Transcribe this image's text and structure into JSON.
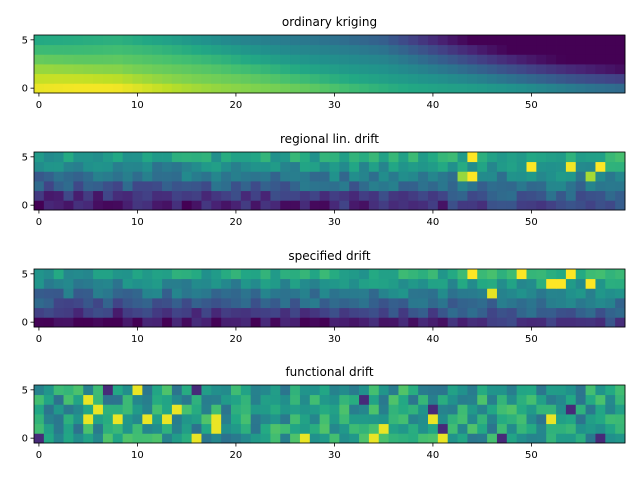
{
  "chart_data": [
    {
      "type": "heatmap",
      "title": "ordinary kriging",
      "colormap": "viridis",
      "nx": 60,
      "ny": 6,
      "xlim": [
        -0.5,
        59.5
      ],
      "ylim": [
        -0.5,
        5.5
      ],
      "xticks": [
        0,
        10,
        20,
        30,
        40,
        50
      ],
      "yticks": [
        0,
        5
      ],
      "xlabel": "",
      "ylabel": "",
      "pattern": "smooth field: high (yellow) at low rows for x<25, decreasing to the right and toward the top; darkest at top-right"
    },
    {
      "type": "heatmap",
      "title": "regional lin. drift",
      "colormap": "viridis",
      "nx": 60,
      "ny": 6,
      "xlim": [
        -0.5,
        59.5
      ],
      "ylim": [
        -0.5,
        5.5
      ],
      "xticks": [
        0,
        10,
        20,
        30,
        40,
        50
      ],
      "yticks": [
        0,
        5
      ],
      "xlabel": "",
      "ylabel": "",
      "pattern": "dark purple bottom rows, teal/green upper rows, noisy with bright yellow cells at top-right"
    },
    {
      "type": "heatmap",
      "title": "specified drift",
      "colormap": "viridis",
      "nx": 60,
      "ny": 6,
      "xlim": [
        -0.5,
        59.5
      ],
      "ylim": [
        -0.5,
        5.5
      ],
      "xticks": [
        0,
        10,
        20,
        30,
        40,
        50
      ],
      "yticks": [
        0,
        5
      ],
      "xlabel": "",
      "ylabel": "",
      "pattern": "similar to regional drift: dark bottom rows, teal upper rows, yellow speckles at top-right"
    },
    {
      "type": "heatmap",
      "title": "functional drift",
      "colormap": "viridis",
      "nx": 60,
      "ny": 6,
      "xlim": [
        -0.5,
        59.5
      ],
      "ylim": [
        -0.5,
        5.5
      ],
      "xticks": [
        0,
        10,
        20,
        30,
        40,
        50
      ],
      "yticks": [
        0,
        5
      ],
      "xlabel": "",
      "ylabel": "",
      "pattern": "uniform noise centred on teal-green with scattered yellow and purple cells"
    }
  ]
}
